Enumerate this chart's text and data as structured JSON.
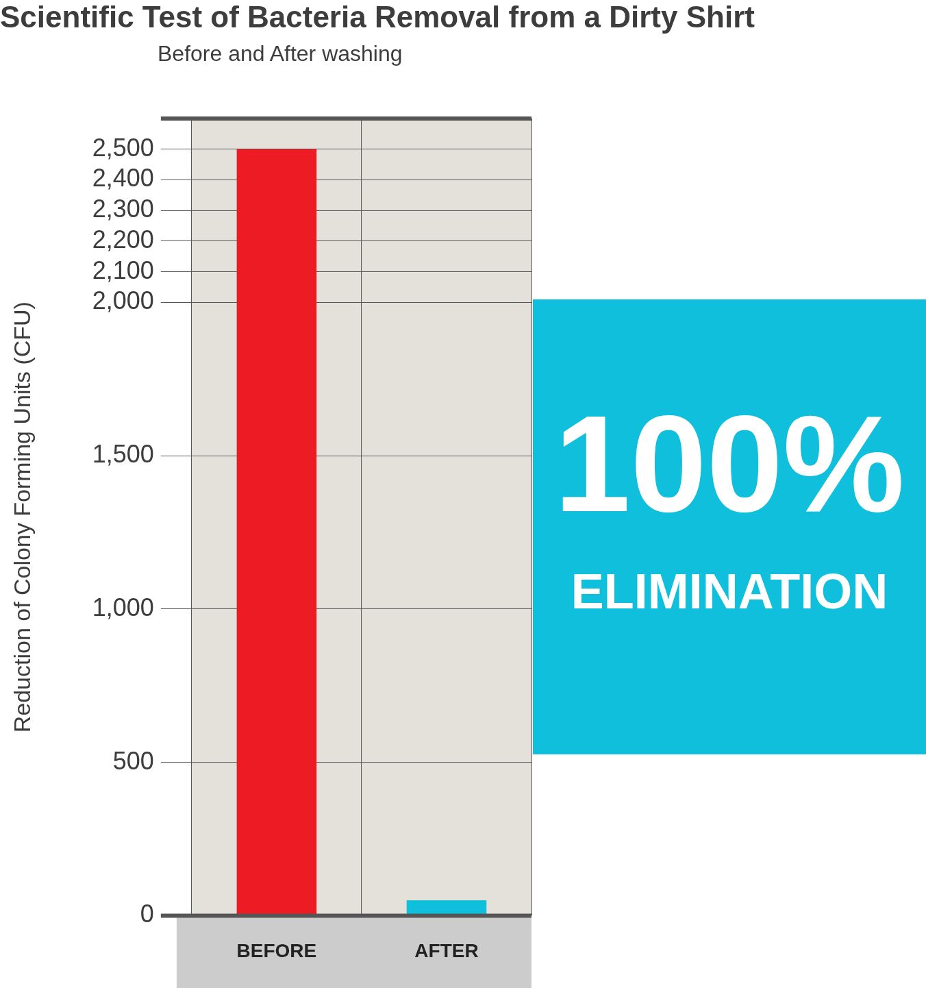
{
  "chart_data": {
    "type": "bar",
    "title": "Scientific Test of Bacteria Removal from a Dirty Shirt",
    "subtitle": "Before and After washing",
    "ylabel": "Reduction of Colony Forming Units (CFU)",
    "categories": [
      "BEFORE",
      "AFTER"
    ],
    "values": [
      2500,
      50
    ],
    "colors": [
      "#ed1c24",
      "#10bfdc"
    ],
    "ylim": [
      0,
      2600
    ],
    "yticks": [
      0,
      500,
      {
        "value": 1000,
        "label": "1,000"
      },
      {
        "value": 1500,
        "label": "1,500"
      },
      {
        "value": 2000,
        "label": "2,000"
      },
      {
        "value": 2100,
        "label": "2,100"
      },
      {
        "value": 2200,
        "label": "2,200"
      },
      {
        "value": 2300,
        "label": "2,300"
      },
      {
        "value": 2400,
        "label": "2,400"
      },
      {
        "value": 2500,
        "label": "2,500"
      }
    ],
    "grid": true,
    "legend": false,
    "annotations": [
      "100%",
      "ELIMINATION"
    ]
  }
}
